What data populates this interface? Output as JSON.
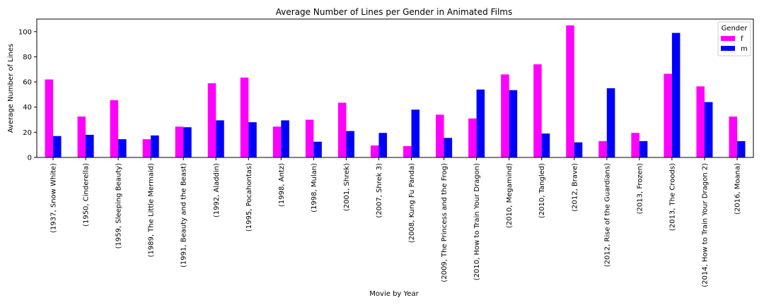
{
  "chart_data": {
    "type": "bar",
    "title": "Average Number of Lines per Gender in Animated Films",
    "xlabel": "Movie by Year",
    "ylabel": "Average Number of Lines",
    "ylim": [
      0,
      110
    ],
    "yticks": [
      0,
      20,
      40,
      60,
      80,
      100
    ],
    "grid": false,
    "legend": {
      "title": "Gender",
      "placement": "top-right"
    },
    "categories": [
      "(1937, Snow White)",
      "(1950, Cinderella)",
      "(1959, Sleeping Beauty)",
      "(1989, The Little Mermaid)",
      "(1991, Beauty and the Beast)",
      "(1992, Aladdin)",
      "(1995, Pocahontas)",
      "(1998, Antz)",
      "(1998, Mulan)",
      "(2001, Shrek)",
      "(2007, Shrek 3)",
      "(2008, Kung Fu Panda)",
      "(2009, The Princess and the Frog)",
      "(2010, How to Train Your Dragon)",
      "(2010, Megamind)",
      "(2010, Tangled)",
      "(2012, Brave)",
      "(2012, Rise of the Guardians)",
      "(2013, Frozen)",
      "(2013, The Croods)",
      "(2014, How to Train Your Dragon 2)",
      "(2016, Moana)"
    ],
    "series": [
      {
        "name": "f",
        "color": "#ff00ff",
        "values": [
          62,
          32.5,
          45.5,
          14.5,
          24.5,
          59,
          63.5,
          24.5,
          30,
          43.5,
          9.5,
          9,
          34,
          31,
          66,
          74,
          105,
          13,
          19.5,
          66.5,
          56.5,
          32.5
        ]
      },
      {
        "name": "m",
        "color": "#0000ff",
        "values": [
          17,
          18,
          14.5,
          17.5,
          24,
          29.5,
          28,
          29.5,
          12.5,
          21,
          19.5,
          38,
          15.5,
          54,
          53.5,
          19,
          12,
          55,
          13,
          99,
          44,
          13
        ]
      }
    ]
  }
}
